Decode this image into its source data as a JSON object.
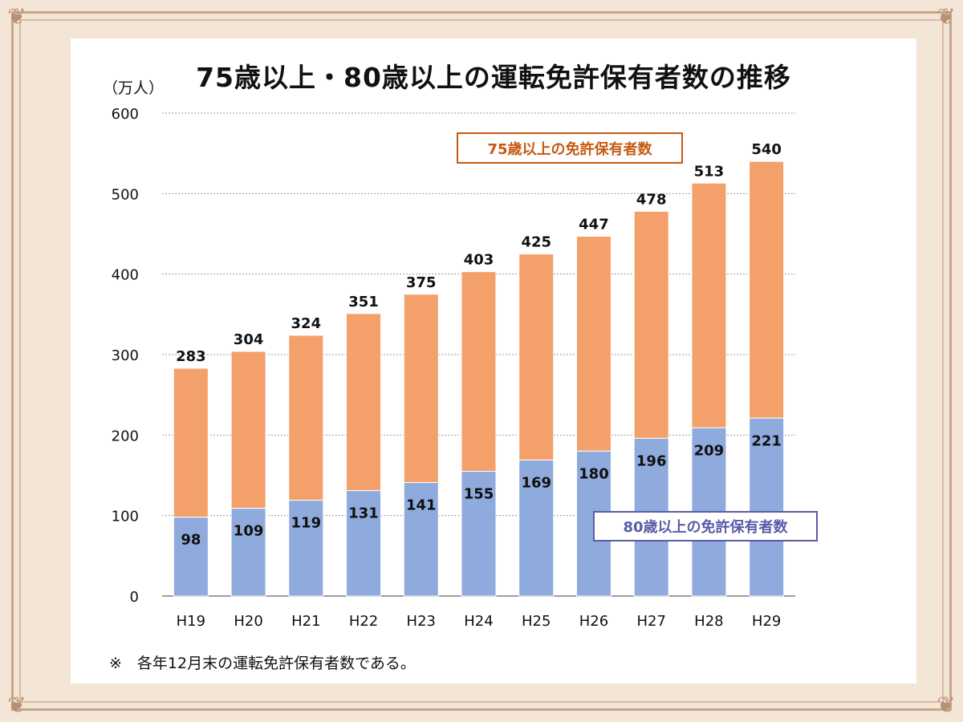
{
  "chart_data": {
    "type": "bar",
    "title": "75歳以上・80歳以上の運転免許保有者数の推移",
    "ylabel": "（万人）",
    "ylim": [
      0,
      600
    ],
    "yticks": [
      0,
      100,
      200,
      300,
      400,
      500,
      600
    ],
    "categories": [
      "H19",
      "H20",
      "H21",
      "H22",
      "H23",
      "H24",
      "H25",
      "H26",
      "H27",
      "H28",
      "H29"
    ],
    "series": [
      {
        "name": "80歳以上の免許保有者数",
        "values": [
          98,
          109,
          119,
          131,
          141,
          155,
          169,
          180,
          196,
          209,
          221
        ],
        "color": "#8faadc"
      },
      {
        "name": "75歳以上の免許保有者数",
        "values": [
          283,
          304,
          324,
          351,
          375,
          403,
          425,
          447,
          478,
          513,
          540
        ],
        "color": "#f4a06a"
      }
    ],
    "legend": {
      "series75": {
        "label": "75歳以上の免許保有者数",
        "text_color": "#c65911",
        "border_color": "#c65911"
      },
      "series80": {
        "label": "80歳以上の免許保有者数",
        "text_color": "#5b5ba8",
        "border_color": "#5b5ba8"
      }
    },
    "note": "※　各年12月末の運転免許保有者数である。",
    "grid": true
  }
}
